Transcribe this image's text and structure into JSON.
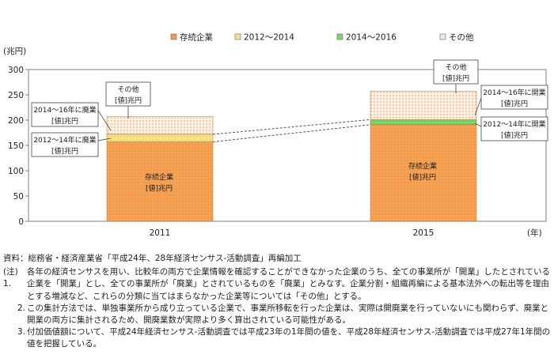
{
  "chart_data": {
    "type": "bar",
    "stacked": true,
    "categories": [
      "2011",
      "2015"
    ],
    "series": [
      {
        "name": "存続企業",
        "values": [
          157,
          191
        ],
        "color": "#f39c4c"
      },
      {
        "name": "2012～2014",
        "values": [
          15,
          0
        ],
        "color": "#f7e08a"
      },
      {
        "name": "2014～2016",
        "values": [
          0,
          10
        ],
        "color": "#7ed56d"
      },
      {
        "name": "その他",
        "values": [
          35,
          56
        ],
        "color": "#fbe7d6"
      }
    ],
    "yunit": "(兆円)",
    "xunit": "(年)",
    "ylim": [
      0,
      300
    ],
    "yticks": [
      0,
      50,
      100,
      150,
      200,
      250,
      300
    ],
    "legend_position": "top",
    "callouts": {
      "c2011_other": [
        "その他",
        "[値]兆円"
      ],
      "c2011_closed": [
        "2014～16年に廃業",
        "[値]兆円"
      ],
      "c2011_closed2": [
        "2012～14年に廃業",
        "[値]兆円"
      ],
      "c2011_survive": [
        "存続企業",
        "[値]兆円"
      ],
      "c2015_other": [
        "その他",
        "[値]兆円"
      ],
      "c2015_open1": [
        "2014～16年に開業",
        "[値]兆円"
      ],
      "c2015_open2": [
        "2012～14年に開業",
        "[値]兆円"
      ],
      "c2015_survive": [
        "存続企業",
        "[値]兆円"
      ]
    }
  },
  "notes": {
    "source": "資料：総務省・経済産業省「平成24年、28年経済センサス-活動調査」再編加工",
    "items": [
      {
        "num": "(注) 1.",
        "text": "各年の経済センサスを用い、比較年の両方で企業情報を確認することができなかった企業のうち、全ての事業所が「開業」したとされている企業を「開業」とし、全ての事業所が「廃業」とされているものを「廃業」とみなす。企業分割・組織再編による基本法外への転出等を理由とする増減など、これらの分類に当てはまらなかった企業等については「その他」とする。"
      },
      {
        "num": "2.",
        "text": "この集計方法では、単独事業所から成り立っている企業で、事業所移転を行った企業は、実際は開廃業を行っていないにも関わらず、廃業と開業の両方に集計されるため、開廃業数が実際より多く算出されている可能性がある。"
      },
      {
        "num": "3.",
        "text": "付加価値額について、平成24年経済センサス-活動調査では平成23年の1年間の値を、平成28年経済センサス-活動調査では平成27年1年間の値を把握している。"
      }
    ]
  }
}
